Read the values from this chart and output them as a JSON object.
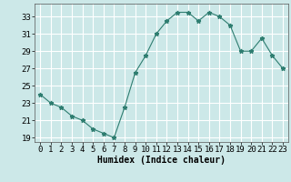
{
  "x": [
    0,
    1,
    2,
    3,
    4,
    5,
    6,
    7,
    8,
    9,
    10,
    11,
    12,
    13,
    14,
    15,
    16,
    17,
    18,
    19,
    20,
    21,
    22,
    23
  ],
  "y": [
    24.0,
    23.0,
    22.5,
    21.5,
    21.0,
    20.0,
    19.5,
    19.0,
    22.5,
    26.5,
    28.5,
    31.0,
    32.5,
    33.5,
    33.5,
    32.5,
    33.5,
    33.0,
    32.0,
    29.0,
    29.0,
    30.5,
    28.5,
    27.0
  ],
  "line_color": "#2e7d70",
  "marker": "*",
  "bg_color": "#cce8e8",
  "grid_color": "#ffffff",
  "xlabel": "Humidex (Indice chaleur)",
  "xlabel_fontsize": 7,
  "tick_fontsize": 6.5,
  "ylim": [
    18.5,
    34.5
  ],
  "xlim": [
    -0.5,
    23.5
  ],
  "yticks": [
    19,
    21,
    23,
    25,
    27,
    29,
    31,
    33
  ],
  "xticks": [
    0,
    1,
    2,
    3,
    4,
    5,
    6,
    7,
    8,
    9,
    10,
    11,
    12,
    13,
    14,
    15,
    16,
    17,
    18,
    19,
    20,
    21,
    22,
    23
  ]
}
